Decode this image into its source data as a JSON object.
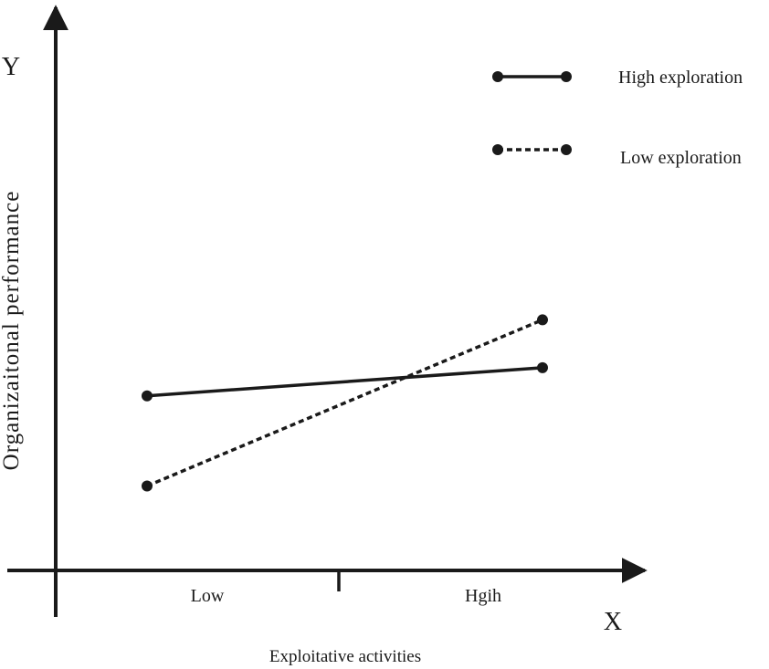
{
  "chart_data": {
    "type": "line",
    "categories": [
      "Low",
      "Hgih"
    ],
    "series": [
      {
        "name": "High exploration",
        "values": [
          0.42,
          0.52
        ],
        "style": "solid"
      },
      {
        "name": "Low exploration",
        "values": [
          0.1,
          0.69
        ],
        "style": "dashed"
      }
    ],
    "ylim": [
      -0.2,
      1.8
    ],
    "grid": false,
    "legend_position": "top-right",
    "xlabel": "Exploitative activities",
    "ylabel": "Organizaitonal performance",
    "x_axis_letter": "X",
    "y_axis_letter": "Y"
  },
  "colors": {
    "ink": "#1a1a1a",
    "background": "#ffffff"
  }
}
